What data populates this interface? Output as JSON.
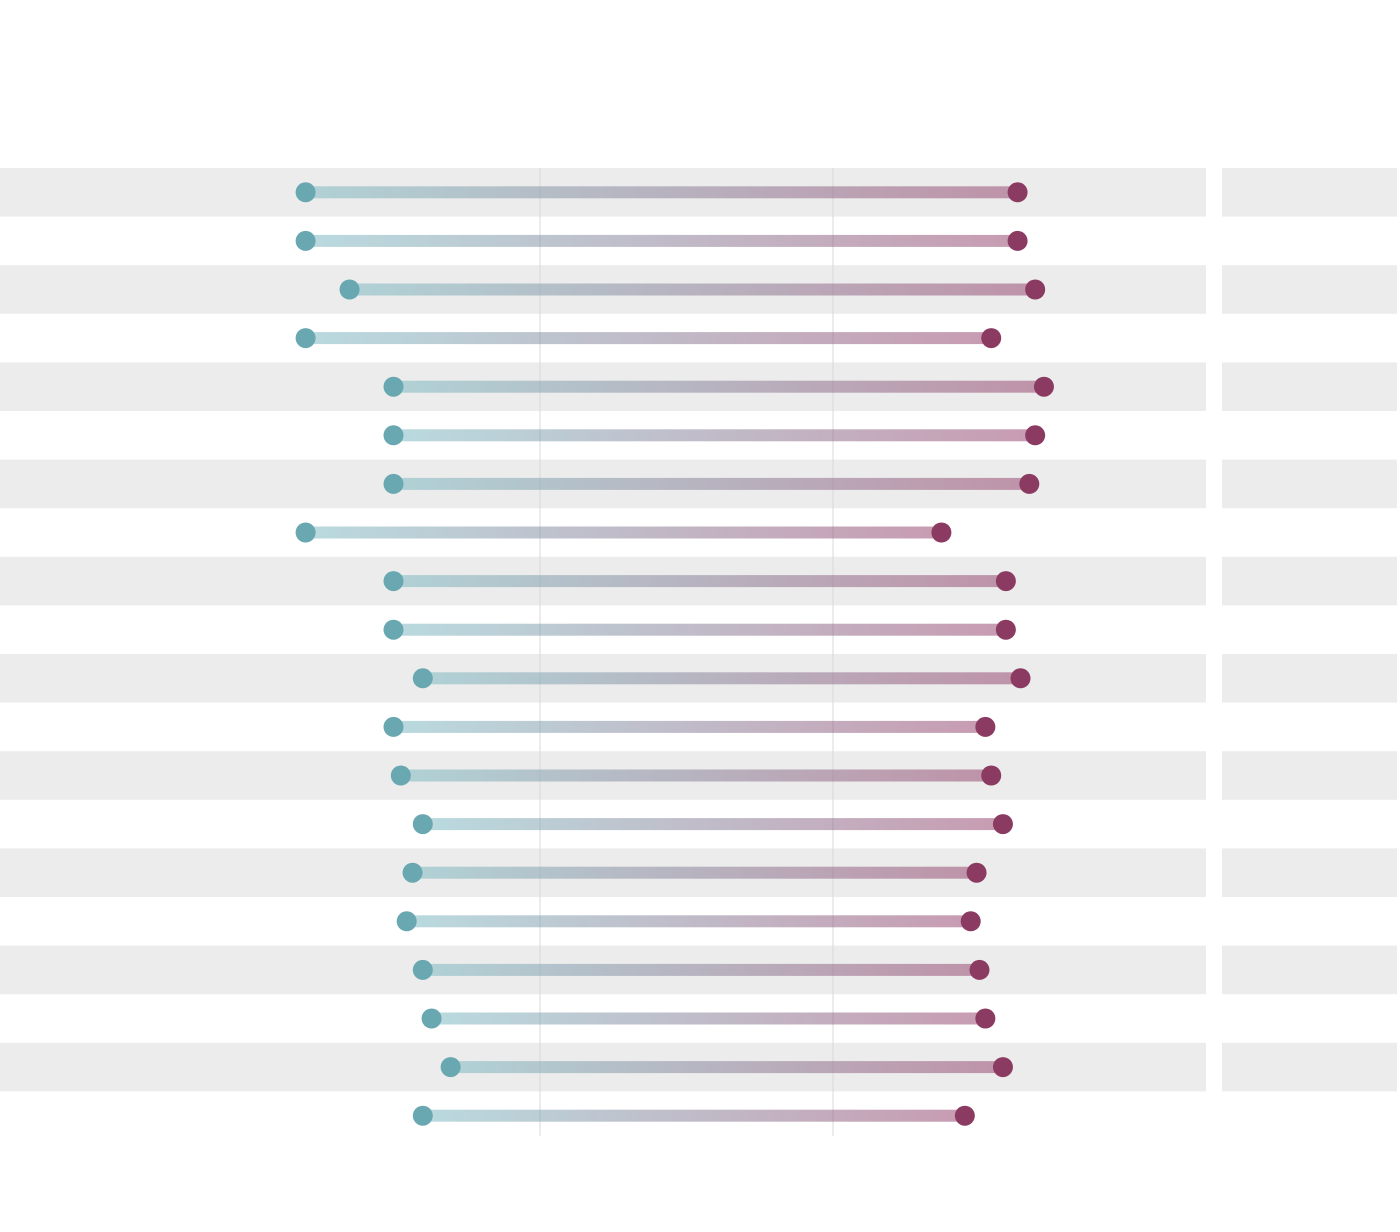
{
  "chart_data": {
    "type": "dumbbell",
    "xlim": [
      20,
      80
    ],
    "gridlines": [
      40,
      60
    ],
    "start": {
      "color": "#69a7b1",
      "values": [
        24.0,
        24.0,
        27.0,
        24.0,
        30.0,
        30.0,
        30.0,
        24.0,
        30.0,
        30.0,
        32.0,
        30.0,
        30.5,
        32.0,
        31.3,
        30.9,
        32.0,
        32.6,
        33.9,
        32.0
      ]
    },
    "end": {
      "color": "#8b3b62",
      "values": [
        72.6,
        72.6,
        73.8,
        70.8,
        74.4,
        73.8,
        73.4,
        67.4,
        71.8,
        71.8,
        72.8,
        70.4,
        70.8,
        71.6,
        69.8,
        69.4,
        70.0,
        70.4,
        71.6,
        69.0
      ]
    },
    "band_color": "#ebeceb"
  }
}
